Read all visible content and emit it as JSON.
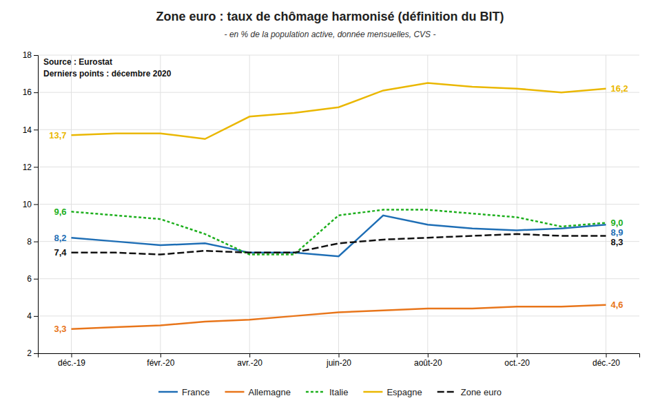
{
  "chart_data": {
    "type": "line",
    "title": "Zone euro : taux de chômage harmonisé (définition du BIT)",
    "subtitle": "- en % de la population active,  donnée mensuelles, CVS -",
    "annotations": [
      "Source : Eurostat",
      "Derniers points : décembre 2020"
    ],
    "categories": [
      "déc.-19",
      null,
      "févr.-20",
      null,
      "avr.-20",
      null,
      "juin-20",
      null,
      "août-20",
      null,
      "oct.-20",
      null,
      "déc.-20"
    ],
    "series": [
      {
        "name": "France",
        "color": "#1E6EB5",
        "line_style": "solid",
        "values": [
          8.2,
          8.0,
          7.8,
          7.9,
          7.4,
          7.4,
          7.2,
          9.4,
          8.9,
          8.7,
          8.6,
          8.7,
          8.9
        ],
        "value_labels": [
          "8,2",
          null,
          null,
          null,
          null,
          null,
          null,
          null,
          null,
          null,
          null,
          null,
          "8,9"
        ]
      },
      {
        "name": "Allemagne",
        "color": "#E8751A",
        "line_style": "solid",
        "values": [
          3.3,
          3.4,
          3.5,
          3.7,
          3.8,
          4.0,
          4.2,
          4.3,
          4.4,
          4.4,
          4.5,
          4.5,
          4.6
        ],
        "value_labels": [
          "3,3",
          null,
          null,
          null,
          null,
          null,
          null,
          null,
          null,
          null,
          null,
          null,
          "4,6"
        ]
      },
      {
        "name": "Italie",
        "color": "#1DAF1D",
        "line_style": "dotted",
        "values": [
          9.6,
          9.4,
          9.2,
          8.4,
          7.3,
          7.3,
          9.4,
          9.7,
          9.7,
          9.5,
          9.3,
          8.8,
          9.0
        ],
        "value_labels": [
          "9,6",
          null,
          null,
          null,
          null,
          null,
          null,
          null,
          null,
          null,
          null,
          null,
          "9,0"
        ]
      },
      {
        "name": "Espagne",
        "color": "#EAB700",
        "line_style": "solid",
        "values": [
          13.7,
          13.8,
          13.8,
          13.5,
          14.7,
          14.9,
          15.2,
          16.1,
          16.5,
          16.3,
          16.2,
          16.0,
          16.2
        ],
        "value_labels": [
          "13,7",
          null,
          null,
          null,
          null,
          null,
          null,
          null,
          null,
          null,
          null,
          null,
          "16,2"
        ]
      },
      {
        "name": "Zone euro",
        "color": "#111111",
        "line_style": "dashed",
        "values": [
          7.4,
          7.4,
          7.3,
          7.5,
          7.4,
          7.4,
          7.9,
          8.1,
          8.2,
          8.3,
          8.4,
          8.3,
          8.3
        ],
        "value_labels": [
          "7,4",
          null,
          null,
          null,
          null,
          null,
          null,
          null,
          null,
          null,
          null,
          null,
          "8,3"
        ]
      }
    ],
    "ylim": [
      2,
      18
    ],
    "yticks": [
      2,
      4,
      6,
      8,
      10,
      12,
      14,
      16,
      18
    ],
    "grid": true,
    "legend": "bottom"
  }
}
